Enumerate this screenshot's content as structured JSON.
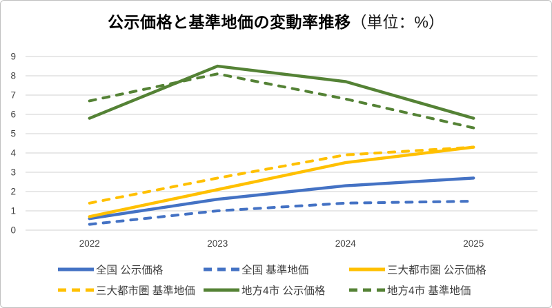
{
  "title": {
    "main": "公示価格と基準地価の変動率推移",
    "unit": "（単位：%）"
  },
  "chart_data": {
    "type": "line",
    "title": "公示価格と基準地価の変動率推移（単位：%）",
    "categories": [
      "2022",
      "2023",
      "2024",
      "2025"
    ],
    "series": [
      {
        "name": "全国 公示価格",
        "color": "#4472C4",
        "style": "solid",
        "values": [
          0.6,
          1.6,
          2.3,
          2.7
        ]
      },
      {
        "name": "全国 基準地価",
        "color": "#4472C4",
        "style": "dashed",
        "values": [
          0.3,
          1.0,
          1.4,
          1.5
        ]
      },
      {
        "name": "三大都市圏 公示価格",
        "color": "#FFC000",
        "style": "solid",
        "values": [
          0.7,
          2.1,
          3.5,
          4.3
        ]
      },
      {
        "name": "三大都市圏 基準地価",
        "color": "#FFC000",
        "style": "dashed",
        "values": [
          1.4,
          2.7,
          3.9,
          4.3
        ]
      },
      {
        "name": "地方4市 公示価格",
        "color": "#548235",
        "style": "solid",
        "values": [
          5.8,
          8.5,
          7.7,
          5.8
        ]
      },
      {
        "name": "地方4市 基準地価",
        "color": "#548235",
        "style": "dashed",
        "values": [
          6.7,
          8.1,
          6.8,
          5.3
        ]
      }
    ],
    "xlabel": "",
    "ylabel": "",
    "ylim": [
      0,
      9
    ],
    "y_ticks": [
      0,
      1,
      2,
      3,
      4,
      5,
      6,
      7,
      8,
      9
    ],
    "grid": true,
    "gridline_color": "#D9D9D9",
    "axis_text_color": "#404040",
    "legend_position": "bottom"
  }
}
